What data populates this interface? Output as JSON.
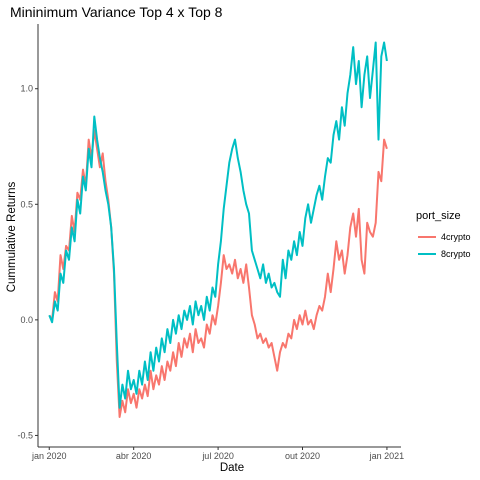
{
  "chart_data": {
    "type": "line",
    "title": "Mininimum Variance  Top 4 x Top 8",
    "xlabel": "Date",
    "ylabel": "Cummulative Returns",
    "x_ticks": [
      "jan 2020",
      "abr 2020",
      "jul 2020",
      "out 2020",
      "jan 2021"
    ],
    "x_tick_values": [
      0,
      3,
      6,
      9,
      12
    ],
    "y_ticks": [
      "-0.5",
      "0.0",
      "0.5",
      "1.0"
    ],
    "y_tick_values": [
      -0.5,
      0.0,
      0.5,
      1.0
    ],
    "xlim": [
      -0.4,
      12.5
    ],
    "ylim": [
      -0.55,
      1.28
    ],
    "grid": false,
    "legend": {
      "title": "port_size",
      "placement": "right"
    },
    "series": [
      {
        "name": "4crypto",
        "color": "#F8766D",
        "x": [
          0,
          0.1,
          0.2,
          0.3,
          0.4,
          0.5,
          0.6,
          0.7,
          0.8,
          0.9,
          1.0,
          1.1,
          1.2,
          1.3,
          1.4,
          1.5,
          1.6,
          1.7,
          1.8,
          1.9,
          2.0,
          2.1,
          2.2,
          2.3,
          2.4,
          2.5,
          2.6,
          2.7,
          2.8,
          2.9,
          3.0,
          3.1,
          3.2,
          3.3,
          3.4,
          3.5,
          3.6,
          3.7,
          3.8,
          3.9,
          4.0,
          4.1,
          4.2,
          4.3,
          4.4,
          4.5,
          4.6,
          4.7,
          4.8,
          4.9,
          5.0,
          5.1,
          5.2,
          5.3,
          5.4,
          5.5,
          5.6,
          5.7,
          5.8,
          5.9,
          6.0,
          6.1,
          6.2,
          6.3,
          6.4,
          6.5,
          6.6,
          6.7,
          6.8,
          6.9,
          7.0,
          7.1,
          7.2,
          7.3,
          7.4,
          7.5,
          7.6,
          7.7,
          7.8,
          7.9,
          8.0,
          8.1,
          8.2,
          8.3,
          8.4,
          8.5,
          8.6,
          8.7,
          8.8,
          8.9,
          9.0,
          9.1,
          9.2,
          9.3,
          9.4,
          9.5,
          9.6,
          9.7,
          9.8,
          9.9,
          10.0,
          10.1,
          10.2,
          10.3,
          10.4,
          10.5,
          10.6,
          10.7,
          10.8,
          10.9,
          11.0,
          11.1,
          11.2,
          11.3,
          11.4,
          11.5,
          11.6,
          11.7,
          11.8,
          11.9,
          12.0
        ],
        "values": [
          0.02,
          0.0,
          0.12,
          0.08,
          0.28,
          0.22,
          0.32,
          0.3,
          0.45,
          0.38,
          0.55,
          0.52,
          0.65,
          0.58,
          0.78,
          0.7,
          0.82,
          0.74,
          0.66,
          0.72,
          0.6,
          0.52,
          0.4,
          0.2,
          -0.18,
          -0.42,
          -0.35,
          -0.4,
          -0.3,
          -0.36,
          -0.32,
          -0.38,
          -0.3,
          -0.34,
          -0.28,
          -0.33,
          -0.22,
          -0.3,
          -0.24,
          -0.28,
          -0.2,
          -0.26,
          -0.18,
          -0.22,
          -0.14,
          -0.2,
          -0.1,
          -0.16,
          -0.08,
          -0.12,
          -0.06,
          -0.14,
          -0.04,
          -0.1,
          -0.08,
          -0.12,
          -0.02,
          -0.06,
          0.02,
          -0.02,
          0.06,
          0.16,
          0.28,
          0.22,
          0.24,
          0.2,
          0.26,
          0.18,
          0.22,
          0.16,
          0.24,
          0.14,
          0.02,
          -0.02,
          -0.08,
          -0.06,
          -0.1,
          -0.08,
          -0.12,
          -0.1,
          -0.16,
          -0.22,
          -0.14,
          -0.1,
          -0.12,
          -0.06,
          -0.08,
          0.0,
          -0.04,
          0.02,
          -0.02,
          0.04,
          -0.02,
          0.0,
          -0.04,
          0.02,
          0.06,
          0.04,
          0.1,
          0.2,
          0.12,
          0.22,
          0.34,
          0.26,
          0.3,
          0.2,
          0.28,
          0.4,
          0.46,
          0.36,
          0.48,
          0.26,
          0.2,
          0.42,
          0.38,
          0.36,
          0.42,
          0.64,
          0.6,
          0.78,
          0.74
        ]
      },
      {
        "name": "8crypto",
        "color": "#00BFC4",
        "x": [
          0,
          0.1,
          0.2,
          0.3,
          0.4,
          0.5,
          0.6,
          0.7,
          0.8,
          0.9,
          1.0,
          1.1,
          1.2,
          1.3,
          1.4,
          1.5,
          1.6,
          1.7,
          1.8,
          1.9,
          2.0,
          2.1,
          2.2,
          2.3,
          2.4,
          2.5,
          2.6,
          2.7,
          2.8,
          2.9,
          3.0,
          3.1,
          3.2,
          3.3,
          3.4,
          3.5,
          3.6,
          3.7,
          3.8,
          3.9,
          4.0,
          4.1,
          4.2,
          4.3,
          4.4,
          4.5,
          4.6,
          4.7,
          4.8,
          4.9,
          5.0,
          5.1,
          5.2,
          5.3,
          5.4,
          5.5,
          5.6,
          5.7,
          5.8,
          5.9,
          6.0,
          6.1,
          6.2,
          6.3,
          6.4,
          6.5,
          6.6,
          6.7,
          6.8,
          6.9,
          7.0,
          7.1,
          7.2,
          7.3,
          7.4,
          7.5,
          7.6,
          7.7,
          7.8,
          7.9,
          8.0,
          8.1,
          8.2,
          8.3,
          8.4,
          8.5,
          8.6,
          8.7,
          8.8,
          8.9,
          9.0,
          9.1,
          9.2,
          9.3,
          9.4,
          9.5,
          9.6,
          9.7,
          9.8,
          9.9,
          10.0,
          10.1,
          10.2,
          10.3,
          10.4,
          10.5,
          10.6,
          10.7,
          10.8,
          10.9,
          11.0,
          11.1,
          11.2,
          11.3,
          11.4,
          11.5,
          11.6,
          11.7,
          11.8,
          11.9,
          12.0
        ],
        "values": [
          0.02,
          -0.01,
          0.08,
          0.04,
          0.2,
          0.16,
          0.3,
          0.26,
          0.4,
          0.34,
          0.52,
          0.46,
          0.62,
          0.56,
          0.74,
          0.66,
          0.88,
          0.78,
          0.7,
          0.64,
          0.56,
          0.5,
          0.4,
          0.22,
          -0.1,
          -0.38,
          -0.28,
          -0.34,
          -0.22,
          -0.3,
          -0.26,
          -0.32,
          -0.22,
          -0.28,
          -0.18,
          -0.26,
          -0.14,
          -0.22,
          -0.12,
          -0.18,
          -0.08,
          -0.14,
          -0.04,
          -0.1,
          0.0,
          -0.06,
          0.02,
          -0.04,
          0.04,
          0.0,
          0.06,
          -0.02,
          0.08,
          0.02,
          0.06,
          0.0,
          0.1,
          0.04,
          0.14,
          0.1,
          0.24,
          0.34,
          0.48,
          0.58,
          0.68,
          0.74,
          0.78,
          0.7,
          0.64,
          0.56,
          0.5,
          0.46,
          0.3,
          0.26,
          0.22,
          0.18,
          0.24,
          0.16,
          0.2,
          0.14,
          0.16,
          0.12,
          0.1,
          0.26,
          0.18,
          0.3,
          0.26,
          0.34,
          0.28,
          0.38,
          0.32,
          0.44,
          0.5,
          0.42,
          0.48,
          0.54,
          0.58,
          0.52,
          0.62,
          0.7,
          0.68,
          0.8,
          0.86,
          0.78,
          0.92,
          0.84,
          0.98,
          1.06,
          1.18,
          1.02,
          1.12,
          0.92,
          1.06,
          1.14,
          0.96,
          1.08,
          1.2,
          0.78,
          1.14,
          1.2,
          1.12
        ]
      }
    ]
  }
}
